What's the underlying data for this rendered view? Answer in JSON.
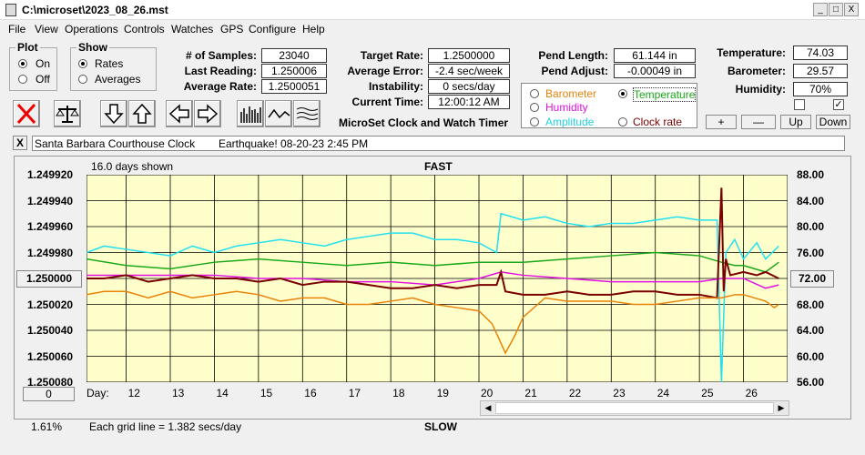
{
  "window": {
    "title": "C:\\microset\\2023_08_26.mst",
    "min": "_",
    "max": "□",
    "close": "X"
  },
  "menu": [
    "File",
    "View",
    "Operations",
    "Controls",
    "Watches",
    "GPS",
    "Configure",
    "Help"
  ],
  "plot": {
    "title": "Plot",
    "on": "On",
    "off": "Off"
  },
  "show": {
    "title": "Show",
    "rates": "Rates",
    "averages": "Averages"
  },
  "stats": {
    "samples_label": "# of Samples:",
    "samples": "23040",
    "last_label": "Last Reading:",
    "last": "1.250006",
    "avg_label": "Average Rate:",
    "avg": "1.2500051",
    "target_label": "Target Rate:",
    "target": "1.2500000",
    "error_label": "Average Error:",
    "error": "-2.4 sec/week",
    "instab_label": "Instability:",
    "instab": "0 secs/day",
    "time_label": "Current Time:",
    "time": "12:00:12 AM",
    "pend_len_label": "Pend Length:",
    "pend_len": "61.144 in",
    "pend_adj_label": "Pend Adjust:",
    "pend_adj": "-0.00049 in",
    "temp_label": "Temperature:",
    "temp": "74.03",
    "baro_label": "Barometer:",
    "baro": "29.57",
    "hum_label": "Humidity:",
    "hum": "70%"
  },
  "timer_title": "MicroSet Clock and Watch Timer",
  "sensors": {
    "barometer": "Barometer",
    "temperature": "Temperature",
    "humidity": "Humidity",
    "amplitude": "Amplitude",
    "clock_rate": "Clock rate"
  },
  "adjust": {
    "plus": "+",
    "minus": "—",
    "up": "Up",
    "down": "Down"
  },
  "clock_name": "Santa Barbara Courthouse Clock",
  "note": "Earthquake! 08-20-23 2:45 PM",
  "note_close": "X",
  "chart_header": {
    "days_shown": "16.0 days shown",
    "fast": "FAST",
    "slow": "SLOW",
    "grid": "Each grid line = 1.382 secs/day",
    "pct": "1.61%",
    "day_label": "Day:",
    "left_box": "1.250000",
    "right_box": "72.00",
    "zero_btn": "0"
  },
  "colors": {
    "barometer": "#e8820a",
    "temperature": "#1aa81a",
    "humidity": "#e010e0",
    "amplitude": "#20e0f0",
    "clock_rate": "#7a0000",
    "plot_bg": "#ffffcc"
  },
  "chart_data": {
    "type": "line",
    "left_axis": [
      "1.249920",
      "1.249940",
      "1.249960",
      "1.249980",
      "1.250000",
      "1.250020",
      "1.250040",
      "1.250060",
      "1.250080"
    ],
    "right_axis": [
      "88.00",
      "84.00",
      "80.00",
      "76.00",
      "72.00",
      "68.00",
      "64.00",
      "60.00",
      "56.00"
    ],
    "days": [
      "12",
      "13",
      "14",
      "15",
      "16",
      "17",
      "18",
      "19",
      "20",
      "21",
      "22",
      "23",
      "24",
      "25",
      "26"
    ],
    "xlim": [
      11.1,
      27.0
    ],
    "right_ylim": [
      56,
      88
    ],
    "series": [
      {
        "name": "Amplitude",
        "color": "#20e0f0",
        "x": [
          11.1,
          11.5,
          12,
          12.5,
          13,
          13.5,
          14,
          14.5,
          15,
          15.5,
          16,
          16.5,
          17,
          17.5,
          18,
          18.5,
          19,
          19.5,
          20,
          20.4,
          20.5,
          21,
          21.5,
          22,
          22.5,
          23,
          23.5,
          24,
          24.5,
          25,
          25.4,
          25.5,
          25.6,
          25.8,
          26,
          26.3,
          26.5,
          26.8
        ],
        "y": [
          76,
          77,
          76.5,
          76,
          75.5,
          77,
          76,
          77,
          77.5,
          78,
          77.5,
          77,
          78,
          78.5,
          79,
          79,
          78,
          78,
          77.5,
          76,
          82,
          81,
          81.5,
          80.5,
          80,
          80.5,
          80.5,
          81,
          81.5,
          81,
          81,
          56,
          76,
          78,
          75,
          77.5,
          75,
          77
        ]
      },
      {
        "name": "Temperature",
        "color": "#1aa81a",
        "x": [
          11.1,
          12,
          13,
          14,
          15,
          16,
          17,
          18,
          19,
          20,
          21,
          22,
          23,
          24,
          25,
          25.5,
          25.8,
          26,
          26.5,
          26.8
        ],
        "y": [
          75,
          74,
          73.5,
          74.5,
          75,
          74.5,
          74,
          74.5,
          74,
          74.5,
          74.5,
          75,
          75.5,
          76,
          75.5,
          74.5,
          74,
          74,
          73,
          74.5
        ]
      },
      {
        "name": "Humidity",
        "color": "#e010e0",
        "x": [
          11.1,
          12,
          13,
          14,
          15,
          16,
          17,
          18,
          19,
          20,
          20.5,
          21,
          22,
          23,
          24,
          25,
          25.5,
          26,
          26.5,
          26.8
        ],
        "y": [
          72.5,
          72.5,
          72.5,
          72.5,
          72,
          72,
          71.5,
          71.5,
          71,
          72,
          73,
          72.5,
          72,
          71.5,
          71.5,
          71.5,
          72,
          72,
          70.5,
          71
        ]
      },
      {
        "name": "Clock rate",
        "color": "#7a0000",
        "x": [
          11.1,
          11.5,
          12,
          12.5,
          13,
          13.5,
          14,
          14.5,
          15,
          15.5,
          16,
          16.5,
          17,
          17.5,
          18,
          18.5,
          19,
          19.5,
          20,
          20.4,
          20.5,
          20.6,
          21,
          21.5,
          22,
          22.5,
          23,
          23.5,
          24,
          24.5,
          25,
          25.4,
          25.5,
          25.55,
          25.6,
          25.7,
          26,
          26.3,
          26.5,
          26.8
        ],
        "y": [
          72,
          72,
          72.5,
          71.5,
          72,
          72.5,
          72,
          72,
          71.5,
          72,
          71,
          71.5,
          71.5,
          71,
          70.5,
          70.5,
          71,
          70.5,
          71,
          71,
          73,
          70,
          69.5,
          69.5,
          70,
          69.5,
          69.5,
          70,
          70,
          69.5,
          69.5,
          69,
          86,
          70,
          75,
          72.5,
          73,
          72.5,
          73,
          72
        ]
      },
      {
        "name": "Barometer",
        "color": "#e8820a",
        "x": [
          11.1,
          11.5,
          12,
          12.5,
          13,
          13.5,
          14,
          14.5,
          15,
          15.5,
          16,
          16.5,
          17,
          17.5,
          18,
          18.5,
          19,
          19.5,
          20,
          20.3,
          20.6,
          20.8,
          21,
          21.5,
          22,
          22.5,
          23,
          23.5,
          24,
          24.5,
          25,
          25.4,
          25.5,
          25.8,
          26,
          26.5,
          26.7,
          26.8
        ],
        "y": [
          69.5,
          70,
          70,
          69,
          70,
          69,
          69.5,
          70,
          69.5,
          68.5,
          69,
          69,
          68,
          68,
          68.5,
          69,
          68,
          67.5,
          67,
          65,
          60.5,
          63,
          66,
          69,
          68.5,
          68.5,
          68.5,
          68,
          68,
          68.5,
          69,
          69,
          69,
          69.5,
          69.5,
          68.5,
          67.5,
          68
        ]
      }
    ]
  }
}
